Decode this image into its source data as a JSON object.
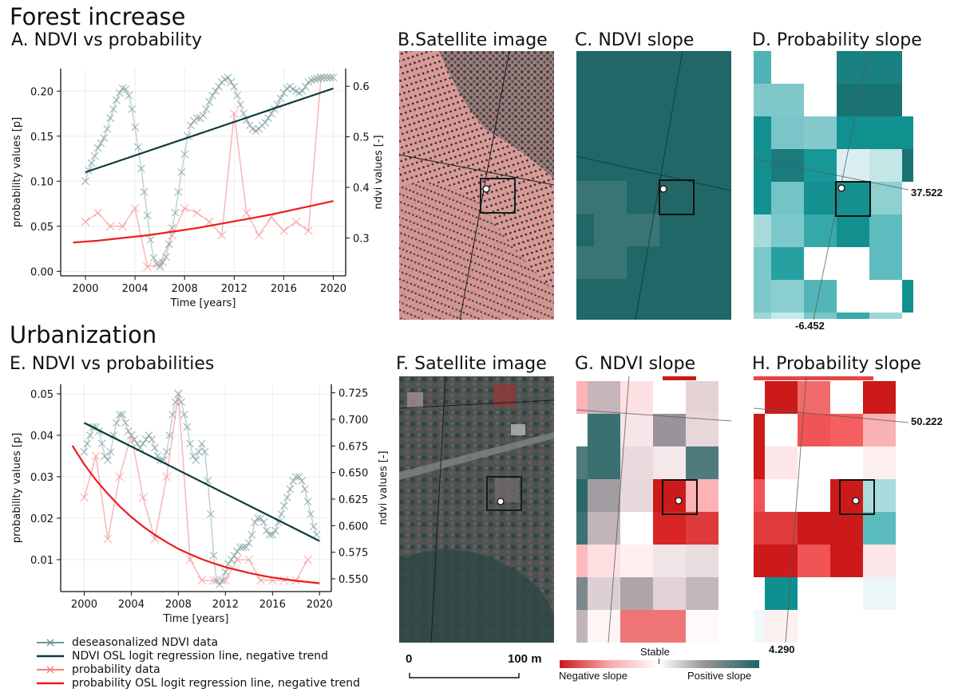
{
  "sections": {
    "forest": "Forest increase",
    "urban": "Urbanization"
  },
  "panels": {
    "A": "A. NDVI vs probability",
    "B": "B.Satellite image",
    "C": "C. NDVI slope",
    "D": "D. Probability slope",
    "E": "E. NDVI vs probabilities",
    "F": "F. Satellite image",
    "G": "G. NDVI slope",
    "H": "H. Probability slope"
  },
  "legend": [
    {
      "label": "deseasonalized NDVI data",
      "color": "#6e9696",
      "marker": "x"
    },
    {
      "label": "NDVI OSL logit regression line, negative trend",
      "color": "#0d3b3b",
      "marker": "none"
    },
    {
      "label": "probability data",
      "color": "#f08080",
      "marker": "x"
    },
    {
      "label": "probability OSL logit regression line, negative trend",
      "color": "#ee1c1c",
      "marker": "none"
    }
  ],
  "scalebar": {
    "start": "0",
    "end": "100 m"
  },
  "colorbar": {
    "center_label": "Stable",
    "left_label": "Negative slope",
    "right_label": "Positive slope",
    "negative_color": "#cc1a1a",
    "neutral_color": "#ffffff",
    "positive_color": "#1e6464"
  },
  "coords": {
    "D_right": "37.522",
    "D_bottom": "-6.452",
    "H_right": "50.222",
    "H_bottom": "4.290"
  },
  "chart_data": [
    {
      "id": "A",
      "type": "line",
      "title": "A. NDVI vs probability",
      "xlabel": "Time [years]",
      "ylabel": "probability values [p]",
      "ylabel_right": "ndvi values [-]",
      "xlim": [
        1998,
        2021
      ],
      "ylim": [
        -0.005,
        0.225
      ],
      "ylim_right": [
        0.225,
        0.635
      ],
      "xticks": [
        2000,
        2004,
        2008,
        2012,
        2016,
        2020
      ],
      "yticks": [
        0.0,
        0.05,
        0.1,
        0.15,
        0.2
      ],
      "ytick_labels": [
        "0.00",
        "0.05",
        "0.10",
        "0.15",
        "0.20"
      ],
      "yticks_right": [
        0.3,
        0.4,
        0.5,
        0.6
      ],
      "ytick_labels_right": [
        "0.3",
        "0.4",
        "0.5",
        "0.6"
      ],
      "grid": true,
      "series": [
        {
          "name": "deseasonalized NDVI data",
          "axis": "left",
          "x": [
            2000,
            2000.25,
            2000.5,
            2000.75,
            2001,
            2001.25,
            2001.5,
            2001.75,
            2002,
            2002.25,
            2002.5,
            2002.75,
            2003,
            2003.25,
            2003.5,
            2003.75,
            2004,
            2004.25,
            2004.5,
            2004.75,
            2005,
            2005.25,
            2005.5,
            2005.75,
            2006,
            2006.25,
            2006.5,
            2006.75,
            2007,
            2007.25,
            2007.5,
            2007.75,
            2008,
            2008.25,
            2008.5,
            2008.75,
            2009,
            2009.25,
            2009.5,
            2009.75,
            2010,
            2010.25,
            2010.5,
            2010.75,
            2011,
            2011.25,
            2011.5,
            2011.75,
            2012,
            2012.25,
            2012.5,
            2012.75,
            2013,
            2013.25,
            2013.5,
            2013.75,
            2014,
            2014.25,
            2014.5,
            2014.75,
            2015,
            2015.25,
            2015.5,
            2015.75,
            2016,
            2016.25,
            2016.5,
            2016.75,
            2017,
            2017.25,
            2017.5,
            2017.75,
            2018,
            2018.25,
            2018.5,
            2018.75,
            2019,
            2019.25,
            2019.5,
            2019.75,
            2020
          ],
          "values": [
            0.1,
            0.112,
            0.12,
            0.128,
            0.137,
            0.142,
            0.148,
            0.158,
            0.17,
            0.18,
            0.19,
            0.198,
            0.203,
            0.202,
            0.195,
            0.18,
            0.16,
            0.138,
            0.114,
            0.088,
            0.062,
            0.035,
            0.015,
            0.008,
            0.005,
            0.01,
            0.016,
            0.03,
            0.048,
            0.065,
            0.088,
            0.11,
            0.13,
            0.15,
            0.162,
            0.167,
            0.17,
            0.17,
            0.173,
            0.18,
            0.188,
            0.195,
            0.2,
            0.205,
            0.21,
            0.213,
            0.215,
            0.21,
            0.205,
            0.195,
            0.185,
            0.175,
            0.168,
            0.162,
            0.158,
            0.156,
            0.158,
            0.162,
            0.165,
            0.17,
            0.175,
            0.18,
            0.185,
            0.192,
            0.198,
            0.203,
            0.205,
            0.202,
            0.2,
            0.198,
            0.2,
            0.205,
            0.21,
            0.212,
            0.213,
            0.214,
            0.215,
            0.215,
            0.215,
            0.215,
            0.215
          ]
        },
        {
          "name": "NDVI OSL logit regression line",
          "axis": "left",
          "x": [
            2000,
            2020
          ],
          "values": [
            0.11,
            0.203
          ]
        },
        {
          "name": "probability data",
          "axis": "left",
          "x": [
            2000,
            2001,
            2002,
            2003,
            2004,
            2005,
            2006,
            2007,
            2008,
            2009,
            2010,
            2011,
            2012,
            2013,
            2014,
            2015,
            2016,
            2017,
            2018,
            2019
          ],
          "values": [
            0.055,
            0.065,
            0.05,
            0.05,
            0.07,
            0.005,
            0.008,
            0.04,
            0.07,
            0.065,
            0.055,
            0.04,
            0.175,
            0.065,
            0.04,
            0.06,
            0.045,
            0.055,
            0.045,
            0.215
          ]
        },
        {
          "name": "probability OSL logit regression line",
          "axis": "left",
          "x": [
            1999,
            2001,
            2003,
            2005,
            2007,
            2009,
            2011,
            2013,
            2015,
            2017,
            2019,
            2020
          ],
          "values": [
            0.032,
            0.034,
            0.037,
            0.04,
            0.044,
            0.048,
            0.053,
            0.058,
            0.063,
            0.069,
            0.075,
            0.078
          ]
        }
      ]
    },
    {
      "id": "E",
      "type": "line",
      "title": "E. NDVI vs probabilities",
      "xlabel": "Time [years]",
      "ylabel": "probability values [p]",
      "ylabel_right": "ndvi values [-]",
      "xlim": [
        1998,
        2021
      ],
      "ylim": [
        0.0023,
        0.0523
      ],
      "ylim_right": [
        0.538,
        0.733
      ],
      "xticks": [
        2000,
        2004,
        2008,
        2012,
        2016,
        2020
      ],
      "yticks": [
        0.01,
        0.02,
        0.03,
        0.04,
        0.05
      ],
      "ytick_labels": [
        "0.01",
        "0.02",
        "0.03",
        "0.04",
        "0.05"
      ],
      "yticks_right": [
        0.55,
        0.575,
        0.6,
        0.625,
        0.65,
        0.675,
        0.7,
        0.725
      ],
      "ytick_labels_right": [
        "0.550",
        "0.575",
        "0.600",
        "0.625",
        "0.650",
        "0.675",
        "0.700",
        "0.725"
      ],
      "grid": true,
      "series": [
        {
          "name": "deseasonalized NDVI data",
          "axis": "left",
          "x": [
            2000,
            2000.25,
            2000.5,
            2000.75,
            2001,
            2001.25,
            2001.5,
            2001.75,
            2002,
            2002.25,
            2002.5,
            2002.75,
            2003,
            2003.25,
            2003.5,
            2003.75,
            2004,
            2004.25,
            2004.5,
            2004.75,
            2005,
            2005.25,
            2005.5,
            2005.75,
            2006,
            2006.25,
            2006.5,
            2006.75,
            2007,
            2007.25,
            2007.5,
            2007.75,
            2008,
            2008.25,
            2008.5,
            2008.75,
            2009,
            2009.25,
            2009.5,
            2009.75,
            2010,
            2010.25,
            2010.5,
            2010.75,
            2011,
            2011.25,
            2011.5,
            2011.75,
            2012,
            2012.25,
            2012.5,
            2012.75,
            2013,
            2013.25,
            2013.5,
            2013.75,
            2014,
            2014.25,
            2014.5,
            2014.75,
            2015,
            2015.25,
            2015.5,
            2015.75,
            2016,
            2016.25,
            2016.5,
            2016.75,
            2017,
            2017.25,
            2017.5,
            2017.75,
            2018,
            2018.25,
            2018.5,
            2018.75,
            2019,
            2019.25,
            2019.5,
            2019.75
          ],
          "values": [
            0.036,
            0.038,
            0.04,
            0.042,
            0.042,
            0.041,
            0.038,
            0.035,
            0.034,
            0.036,
            0.04,
            0.043,
            0.045,
            0.045,
            0.043,
            0.041,
            0.04,
            0.039,
            0.038,
            0.037,
            0.038,
            0.039,
            0.04,
            0.039,
            0.037,
            0.035,
            0.034,
            0.034,
            0.036,
            0.04,
            0.045,
            0.048,
            0.05,
            0.048,
            0.045,
            0.042,
            0.038,
            0.035,
            0.034,
            0.036,
            0.038,
            0.036,
            0.029,
            0.021,
            0.011,
            0.005,
            0.004,
            0.005,
            0.007,
            0.009,
            0.01,
            0.011,
            0.012,
            0.013,
            0.013,
            0.013,
            0.014,
            0.016,
            0.019,
            0.02,
            0.02,
            0.019,
            0.017,
            0.016,
            0.016,
            0.017,
            0.019,
            0.021,
            0.023,
            0.025,
            0.027,
            0.029,
            0.03,
            0.03,
            0.029,
            0.027,
            0.024,
            0.021,
            0.018,
            0.016
          ]
        },
        {
          "name": "NDVI OSL logit regression line",
          "axis": "left",
          "x": [
            2000,
            2020
          ],
          "values": [
            0.043,
            0.0145
          ]
        },
        {
          "name": "probability data",
          "axis": "left",
          "x": [
            2000,
            2001,
            2002,
            2003,
            2004,
            2005,
            2006,
            2007,
            2008,
            2009,
            2010,
            2011,
            2012,
            2013,
            2014,
            2015,
            2016,
            2017,
            2018,
            2019
          ],
          "values": [
            0.025,
            0.035,
            0.015,
            0.03,
            0.04,
            0.025,
            0.015,
            0.03,
            0.05,
            0.01,
            0.005,
            0.005,
            0.005,
            0.01,
            0.01,
            0.005,
            0.005,
            0.005,
            0.005,
            0.01
          ]
        },
        {
          "name": "probability OSL logit regression line",
          "axis": "left",
          "x": [
            1999,
            2000,
            2001,
            2002,
            2003,
            2004,
            2005,
            2006,
            2007,
            2008,
            2009,
            2010,
            2011,
            2012,
            2013,
            2014,
            2015,
            2016,
            2017,
            2018,
            2019,
            2020
          ],
          "values": [
            0.0375,
            0.033,
            0.0292,
            0.0259,
            0.0229,
            0.0203,
            0.018,
            0.016,
            0.0142,
            0.0126,
            0.0113,
            0.0101,
            0.0091,
            0.0082,
            0.0075,
            0.0068,
            0.0062,
            0.0057,
            0.0053,
            0.0049,
            0.0046,
            0.0043
          ]
        }
      ]
    }
  ],
  "grids": {
    "C": {
      "base_color": "#216768",
      "cells": [
        {
          "col": 0,
          "row": 4,
          "color": "#3a7576"
        },
        {
          "col": 1,
          "row": 4,
          "color": "#3a7576"
        },
        {
          "col": 1,
          "row": 5,
          "color": "#3a7576"
        },
        {
          "col": 2,
          "row": 5,
          "color": "#3a7576"
        },
        {
          "col": 0,
          "row": 6,
          "color": "#3a7576"
        },
        {
          "col": 1,
          "row": 6,
          "color": "#3a7576"
        }
      ]
    },
    "D": [
      [
        "#4fb3b5",
        null,
        null,
        "#1a8080",
        "#1a8080",
        null
      ],
      [
        "#7fc8ca",
        "#7fc8ca",
        null,
        "#1a7373",
        "#1a7373",
        null
      ],
      [
        "#129090",
        "#7ac5c8",
        "#84cacd",
        "#119090",
        "#119090",
        "#119090"
      ],
      [
        "#129090",
        "#1a7a7c",
        "#179898",
        "#dbeff0",
        "#c3e6e7",
        "#1a7272"
      ],
      [
        "#129090",
        "#74c3c5",
        "#149090",
        "#159090",
        "#8fd0d1",
        null
      ],
      [
        "#a9dadb",
        "#7cc8cb",
        "#35a9aa",
        "#129090",
        "#5fbcbe",
        null
      ],
      [
        "#7cc8cb",
        "#27a0a2",
        null,
        null,
        "#5fbcbe",
        null
      ],
      [
        "#7cc8cb",
        "#8ccfd1",
        "#52b5b7",
        null,
        null,
        "#129090"
      ],
      [
        "#9fd6d7",
        "#c6e9ea",
        "#7ac5c8",
        "#35a9aa",
        "#9fd6d7",
        null
      ]
    ],
    "G": [
      [
        "#fdb3b6",
        "#c6b5ba",
        "#fde0e2",
        "#ffffff",
        "#e4d2d5",
        null
      ],
      [
        "#ffffff",
        "#3a7070",
        "#f5e6e8",
        "#9a939a",
        "#e8d6d9",
        null
      ],
      [
        "#4f7b7d",
        "#3a7070",
        "#e8dadd",
        "#f4e8ea",
        "#4f7b7d",
        null
      ],
      [
        "#2a6868",
        "#a19ca1",
        "#e6d8db",
        "#cc1a1a",
        "#fdb3b6",
        null
      ],
      [
        "#3c7273",
        "#c1b5ba",
        "#ffffff",
        "#d92424",
        "#dd3a3a",
        null
      ],
      [
        "#fdbbbd",
        "#fde0e2",
        "#fff0f0",
        "#f1e4e6",
        "#e9dcdf",
        null
      ],
      [
        "#7b898c",
        "#ddd0d4",
        "#aea5aa",
        "#e2d3d7",
        "#c4b7bc",
        null
      ],
      [
        "#c1b5ba",
        "#fff5f5",
        "#f07676",
        "#f07676",
        "#fffafa",
        null
      ]
    ],
    "H": [
      [
        null,
        "#cc1a1a",
        "#f26b6b",
        null,
        "#cc1a1a",
        null
      ],
      [
        "#cc1a1a",
        null,
        "#f05454",
        "#f46060",
        "#f9b2b3",
        null
      ],
      [
        "#cc1a1a",
        "#fde6e7",
        null,
        null,
        "#fdeff0",
        null
      ],
      [
        "#f05454",
        null,
        null,
        "#cc1a1a",
        "#abdcdd",
        null
      ],
      [
        "#e03a3a",
        "#e03a3a",
        "#cc1a1a",
        "#cc1a1a",
        "#5bbcbd",
        null
      ],
      [
        "#cc1a1a",
        "#cc1a1a",
        "#f05454",
        "#cc1a1a",
        "#fde6e7",
        null
      ],
      [
        null,
        "#0f9090",
        null,
        null,
        "#eaf6f7",
        null
      ],
      [
        "#f0f9f9",
        "#fdf0f0",
        null,
        null,
        null,
        null
      ]
    ]
  }
}
